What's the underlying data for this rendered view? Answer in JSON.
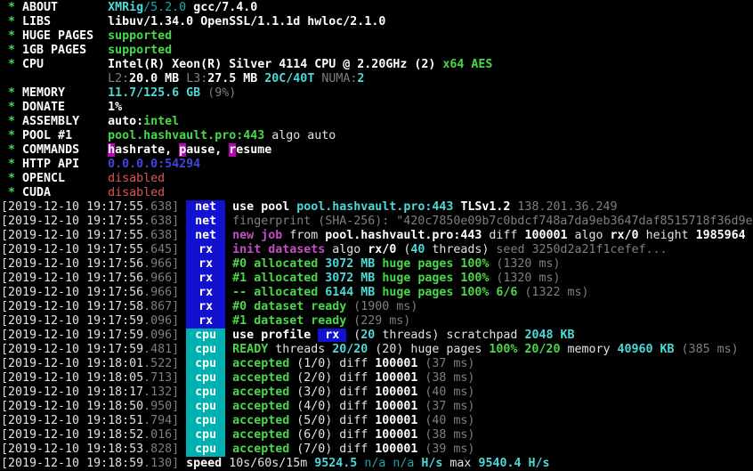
{
  "terminal": {
    "app": "XMRig 5.2.0 miner console output",
    "palette": {
      "background": "#000000",
      "white": "#e2e2e2",
      "white_bold": "#ffffff",
      "gray": "#7f7f7f",
      "green": "#4ad84a",
      "cyan_bright": "#4fd8d8",
      "cyan_dark": "#1ea8a8",
      "magenta": "#c44fc4",
      "red": "#d95454",
      "blue": "#4343dd",
      "magenta_badge_bg": "#b507b5",
      "net_rx_badge_bg": "#1111cf",
      "cpu_badge_bg": "#00b1b1"
    },
    "lines": [
      {
        "name": "summary-about",
        "seg": [
          [
            " * ",
            "gn"
          ],
          [
            "ABOUT       ",
            "wb"
          ],
          [
            "XMRig",
            "cy"
          ],
          [
            "/5.2.0",
            "cd"
          ],
          [
            " gcc/7.4.0",
            "wb"
          ]
        ]
      },
      {
        "name": "summary-libs",
        "seg": [
          [
            " * ",
            "gn"
          ],
          [
            "LIBS        ",
            "wb"
          ],
          [
            "libuv/1.34.0",
            "wb"
          ],
          [
            " OpenSSL/1.1.1d hwloc/2.1.0",
            "wb"
          ]
        ]
      },
      {
        "name": "summary-huge-pages",
        "seg": [
          [
            " * ",
            "gn"
          ],
          [
            "HUGE PAGES  ",
            "wb"
          ],
          [
            "supported",
            "gn"
          ]
        ]
      },
      {
        "name": "summary-1gb-pages",
        "seg": [
          [
            " * ",
            "gn"
          ],
          [
            "1GB PAGES   ",
            "wb"
          ],
          [
            "supported",
            "gn"
          ]
        ]
      },
      {
        "name": "summary-cpu",
        "seg": [
          [
            " * ",
            "gn"
          ],
          [
            "CPU         ",
            "wb"
          ],
          [
            "Intel(R) Xeon(R) Silver 4114 CPU @ 2.20GHz (2) ",
            "wb"
          ],
          [
            "x64 AES",
            "gn"
          ]
        ]
      },
      {
        "name": "summary-cpu-cache",
        "seg": [
          [
            "               ",
            "w"
          ],
          [
            "L2:",
            "gy"
          ],
          [
            "20.0 MB",
            "wb"
          ],
          [
            " ",
            "w"
          ],
          [
            "L3:",
            "gy"
          ],
          [
            "27.5 MB",
            "wb"
          ],
          [
            " ",
            "w"
          ],
          [
            "20C/40T",
            "cy"
          ],
          [
            " ",
            "w"
          ],
          [
            "NUMA:",
            "gy"
          ],
          [
            "2",
            "cy"
          ]
        ]
      },
      {
        "name": "summary-memory",
        "seg": [
          [
            " * ",
            "gn"
          ],
          [
            "MEMORY      ",
            "wb"
          ],
          [
            "11.7/125.6 GB",
            "cy"
          ],
          [
            " (9%)",
            "gy"
          ]
        ]
      },
      {
        "name": "summary-donate",
        "seg": [
          [
            " * ",
            "gn"
          ],
          [
            "DONATE      ",
            "wb"
          ],
          [
            "1%",
            "wb"
          ]
        ]
      },
      {
        "name": "summary-assembly",
        "seg": [
          [
            " * ",
            "gn"
          ],
          [
            "ASSEMBLY    ",
            "wb"
          ],
          [
            "auto:",
            "wb"
          ],
          [
            "intel",
            "gn"
          ]
        ]
      },
      {
        "name": "summary-pool",
        "seg": [
          [
            " * ",
            "gn"
          ],
          [
            "POOL #1     ",
            "wb"
          ],
          [
            "pool.hashvault.pro:443",
            "gn"
          ],
          [
            " algo auto",
            "w"
          ]
        ]
      },
      {
        "name": "summary-commands",
        "seg": [
          [
            " * ",
            "gn"
          ],
          [
            "COMMANDS    ",
            "wb"
          ],
          [
            "h",
            "mb"
          ],
          [
            "ashrate, ",
            "wb"
          ],
          [
            "p",
            "mb"
          ],
          [
            "ause, ",
            "wb"
          ],
          [
            "r",
            "mb"
          ],
          [
            "esume",
            "wb"
          ]
        ]
      },
      {
        "name": "summary-http-api",
        "seg": [
          [
            " * ",
            "gn"
          ],
          [
            "HTTP API    ",
            "wb"
          ],
          [
            "0.0.0.0:54294",
            "bl"
          ]
        ]
      },
      {
        "name": "summary-opencl",
        "seg": [
          [
            " * ",
            "gn"
          ],
          [
            "OPENCL      ",
            "wb"
          ],
          [
            "disabled",
            "rd"
          ]
        ]
      },
      {
        "name": "summary-cuda",
        "seg": [
          [
            " * ",
            "gn"
          ],
          [
            "CUDA        ",
            "wb"
          ],
          [
            "disabled",
            "rd"
          ]
        ]
      },
      {
        "name": "log-use-pool",
        "seg": [
          [
            "[2019-12-10 19:17:55",
            "w"
          ],
          [
            ".638]",
            "gy"
          ],
          [
            " ",
            "w"
          ],
          [
            "net",
            "Bblue"
          ],
          [
            " ",
            "w"
          ],
          [
            "use pool ",
            "wb"
          ],
          [
            "pool.hashvault.pro:443",
            "cy"
          ],
          [
            " ",
            "w"
          ],
          [
            "TLSv1.2",
            "wb"
          ],
          [
            " 138.201.36.249",
            "gy"
          ]
        ]
      },
      {
        "name": "log-fingerprint",
        "seg": [
          [
            "[2019-12-10 19:17:55",
            "w"
          ],
          [
            ".638]",
            "gy"
          ],
          [
            " ",
            "w"
          ],
          [
            "net",
            "Bblue"
          ],
          [
            " ",
            "w"
          ],
          [
            "fingerprint (SHA-256): \"420c7850e09b7c0bdcf748a7da9eb3647daf8515718f36d9e",
            "gy"
          ]
        ]
      },
      {
        "name": "log-new-job",
        "seg": [
          [
            "[2019-12-10 19:17:55",
            "w"
          ],
          [
            ".638]",
            "gy"
          ],
          [
            " ",
            "w"
          ],
          [
            "net",
            "Bblue"
          ],
          [
            " ",
            "w"
          ],
          [
            "new job",
            "mg"
          ],
          [
            " from ",
            "w"
          ],
          [
            "pool.hashvault.pro:443",
            "wb"
          ],
          [
            " diff ",
            "w"
          ],
          [
            "100001",
            "wb"
          ],
          [
            " algo ",
            "w"
          ],
          [
            "rx/0",
            "wb"
          ],
          [
            " height ",
            "w"
          ],
          [
            "1985964",
            "wb"
          ]
        ]
      },
      {
        "name": "log-init-datasets",
        "seg": [
          [
            "[2019-12-10 19:17:55",
            "w"
          ],
          [
            ".645]",
            "gy"
          ],
          [
            " ",
            "w"
          ],
          [
            "rx",
            "Bblue"
          ],
          [
            " ",
            "w"
          ],
          [
            "init datasets",
            "mg"
          ],
          [
            " algo ",
            "w"
          ],
          [
            "rx/0",
            "wb"
          ],
          [
            " (",
            "w"
          ],
          [
            "40",
            "cy"
          ],
          [
            " threads)",
            "w"
          ],
          [
            " seed 3250d2a21f1cefef...",
            "gy"
          ]
        ]
      },
      {
        "name": "log-allocated-0",
        "seg": [
          [
            "[2019-12-10 19:17:56",
            "w"
          ],
          [
            ".966]",
            "gy"
          ],
          [
            " ",
            "w"
          ],
          [
            "rx",
            "Bblue"
          ],
          [
            " ",
            "w"
          ],
          [
            "#0 allocated",
            "gn"
          ],
          [
            " ",
            "w"
          ],
          [
            "3072 MB",
            "cy"
          ],
          [
            " huge pages 100%",
            "gn"
          ],
          [
            " (1320 ms)",
            "gy"
          ]
        ]
      },
      {
        "name": "log-allocated-1",
        "seg": [
          [
            "[2019-12-10 19:17:56",
            "w"
          ],
          [
            ".966]",
            "gy"
          ],
          [
            " ",
            "w"
          ],
          [
            "rx",
            "Bblue"
          ],
          [
            " ",
            "w"
          ],
          [
            "#1 allocated",
            "gn"
          ],
          [
            " ",
            "w"
          ],
          [
            "3072 MB",
            "cy"
          ],
          [
            " huge pages 100%",
            "gn"
          ],
          [
            " (1320 ms)",
            "gy"
          ]
        ]
      },
      {
        "name": "log-allocated-total",
        "seg": [
          [
            "[2019-12-10 19:17:56",
            "w"
          ],
          [
            ".966]",
            "gy"
          ],
          [
            " ",
            "w"
          ],
          [
            "rx",
            "Bblue"
          ],
          [
            " ",
            "w"
          ],
          [
            "-- allocated",
            "gn"
          ],
          [
            " ",
            "w"
          ],
          [
            "6144 MB",
            "cy"
          ],
          [
            " huge pages 100% 6/6",
            "gn"
          ],
          [
            " (1322 ms)",
            "gy"
          ]
        ]
      },
      {
        "name": "log-dataset-ready-0",
        "seg": [
          [
            "[2019-12-10 19:17:58",
            "w"
          ],
          [
            ".867]",
            "gy"
          ],
          [
            " ",
            "w"
          ],
          [
            "rx",
            "Bblue"
          ],
          [
            " ",
            "w"
          ],
          [
            "#0 dataset ready",
            "gn"
          ],
          [
            " (1900 ms)",
            "gy"
          ]
        ]
      },
      {
        "name": "log-dataset-ready-1",
        "seg": [
          [
            "[2019-12-10 19:17:59",
            "w"
          ],
          [
            ".096]",
            "gy"
          ],
          [
            " ",
            "w"
          ],
          [
            "rx",
            "Bblue"
          ],
          [
            " ",
            "w"
          ],
          [
            "#1 dataset ready",
            "gn"
          ],
          [
            " (229 ms)",
            "gy"
          ]
        ]
      },
      {
        "name": "log-use-profile",
        "seg": [
          [
            "[2019-12-10 19:17:59",
            "w"
          ],
          [
            ".096]",
            "gy"
          ],
          [
            " ",
            "w"
          ],
          [
            "cpu",
            "Bcyan"
          ],
          [
            " ",
            "w"
          ],
          [
            "use profile ",
            "wb"
          ],
          [
            " rx ",
            "bgb"
          ],
          [
            " (",
            "w"
          ],
          [
            "20",
            "cy"
          ],
          [
            " threads) scratchpad ",
            "w"
          ],
          [
            "2048 KB",
            "cy"
          ]
        ]
      },
      {
        "name": "log-ready-threads",
        "seg": [
          [
            "[2019-12-10 19:17:59",
            "w"
          ],
          [
            ".481]",
            "gy"
          ],
          [
            " ",
            "w"
          ],
          [
            "cpu",
            "Bcyan"
          ],
          [
            " ",
            "w"
          ],
          [
            "READY",
            "gn"
          ],
          [
            " threads ",
            "w"
          ],
          [
            "20/20",
            "cy"
          ],
          [
            " (20) huge pages ",
            "w"
          ],
          [
            "100% 20/20",
            "gn"
          ],
          [
            " memory ",
            "w"
          ],
          [
            "40960 KB",
            "cy"
          ],
          [
            " (385 ms)",
            "gy"
          ]
        ]
      },
      {
        "name": "log-accepted-1",
        "seg": [
          [
            "[2019-12-10 19:18:01",
            "w"
          ],
          [
            ".522]",
            "gy"
          ],
          [
            " ",
            "w"
          ],
          [
            "cpu",
            "Bcyan"
          ],
          [
            " ",
            "w"
          ],
          [
            "accepted",
            "gn"
          ],
          [
            " (1/0) diff ",
            "w"
          ],
          [
            "100001",
            "wb"
          ],
          [
            " (37 ms)",
            "gy"
          ]
        ]
      },
      {
        "name": "log-accepted-2",
        "seg": [
          [
            "[2019-12-10 19:18:05",
            "w"
          ],
          [
            ".713]",
            "gy"
          ],
          [
            " ",
            "w"
          ],
          [
            "cpu",
            "Bcyan"
          ],
          [
            " ",
            "w"
          ],
          [
            "accepted",
            "gn"
          ],
          [
            " (2/0) diff ",
            "w"
          ],
          [
            "100001",
            "wb"
          ],
          [
            " (38 ms)",
            "gy"
          ]
        ]
      },
      {
        "name": "log-accepted-3",
        "seg": [
          [
            "[2019-12-10 19:18:17",
            "w"
          ],
          [
            ".132]",
            "gy"
          ],
          [
            " ",
            "w"
          ],
          [
            "cpu",
            "Bcyan"
          ],
          [
            " ",
            "w"
          ],
          [
            "accepted",
            "gn"
          ],
          [
            " (3/0) diff ",
            "w"
          ],
          [
            "100001",
            "wb"
          ],
          [
            " (40 ms)",
            "gy"
          ]
        ]
      },
      {
        "name": "log-accepted-4",
        "seg": [
          [
            "[2019-12-10 19:18:50",
            "w"
          ],
          [
            ".950]",
            "gy"
          ],
          [
            " ",
            "w"
          ],
          [
            "cpu",
            "Bcyan"
          ],
          [
            " ",
            "w"
          ],
          [
            "accepted",
            "gn"
          ],
          [
            " (4/0) diff ",
            "w"
          ],
          [
            "100001",
            "wb"
          ],
          [
            " (37 ms)",
            "gy"
          ]
        ]
      },
      {
        "name": "log-accepted-5",
        "seg": [
          [
            "[2019-12-10 19:18:51",
            "w"
          ],
          [
            ".794]",
            "gy"
          ],
          [
            " ",
            "w"
          ],
          [
            "cpu",
            "Bcyan"
          ],
          [
            " ",
            "w"
          ],
          [
            "accepted",
            "gn"
          ],
          [
            " (5/0) diff ",
            "w"
          ],
          [
            "100001",
            "wb"
          ],
          [
            " (40 ms)",
            "gy"
          ]
        ]
      },
      {
        "name": "log-accepted-6",
        "seg": [
          [
            "[2019-12-10 19:18:52",
            "w"
          ],
          [
            ".016]",
            "gy"
          ],
          [
            " ",
            "w"
          ],
          [
            "cpu",
            "Bcyan"
          ],
          [
            " ",
            "w"
          ],
          [
            "accepted",
            "gn"
          ],
          [
            " (6/0) diff ",
            "w"
          ],
          [
            "100001",
            "wb"
          ],
          [
            " (38 ms)",
            "gy"
          ]
        ]
      },
      {
        "name": "log-accepted-7",
        "seg": [
          [
            "[2019-12-10 19:18:53",
            "w"
          ],
          [
            ".828]",
            "gy"
          ],
          [
            " ",
            "w"
          ],
          [
            "cpu",
            "Bcyan"
          ],
          [
            " ",
            "w"
          ],
          [
            "accepted",
            "gn"
          ],
          [
            " (7/0) diff ",
            "w"
          ],
          [
            "100001",
            "wb"
          ],
          [
            " (39 ms)",
            "gy"
          ]
        ]
      },
      {
        "name": "log-speed",
        "seg": [
          [
            "[2019-12-10 19:18:59",
            "w"
          ],
          [
            ".130]",
            "gy"
          ],
          [
            " ",
            "w"
          ],
          [
            "speed",
            "wb"
          ],
          [
            " 10s/60s/15m ",
            "w"
          ],
          [
            "9524.5",
            "cy"
          ],
          [
            " n/a n/a ",
            "cd"
          ],
          [
            "H/s",
            "cy"
          ],
          [
            " max ",
            "w"
          ],
          [
            "9540.4 H/s",
            "cy"
          ]
        ]
      }
    ]
  }
}
